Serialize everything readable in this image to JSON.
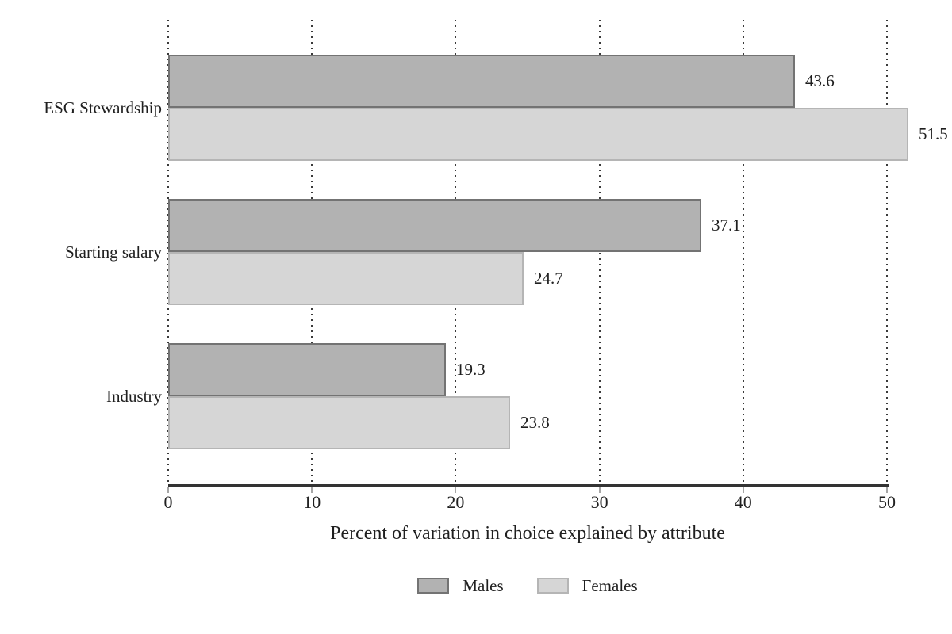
{
  "chart_data": {
    "type": "bar",
    "orientation": "horizontal",
    "title": "",
    "categories": [
      "ESG Stewardship",
      "Starting salary",
      "Industry"
    ],
    "series": [
      {
        "name": "Males",
        "fill": "#b2b2b2",
        "border": "#737373",
        "values": [
          43.6,
          37.1,
          19.3
        ]
      },
      {
        "name": "Females",
        "fill": "#d6d6d6",
        "border": "#b5b5b5",
        "values": [
          51.5,
          24.7,
          23.8
        ]
      }
    ],
    "xlabel": "Percent of variation in choice explained by attribute",
    "ylabel": "",
    "xlim": [
      0,
      50
    ],
    "xticks": [
      "0",
      "10",
      "20",
      "30",
      "40",
      "50"
    ],
    "grid": "vertical-dotted",
    "legend_position": "bottom-center",
    "value_labels_shown": true,
    "colors": {
      "background": "#ffffff",
      "axis_line": "#333333",
      "tick_mark": "#a6a6a6",
      "gridline": "#3a3a3a",
      "text": "#1f1f1f"
    }
  }
}
